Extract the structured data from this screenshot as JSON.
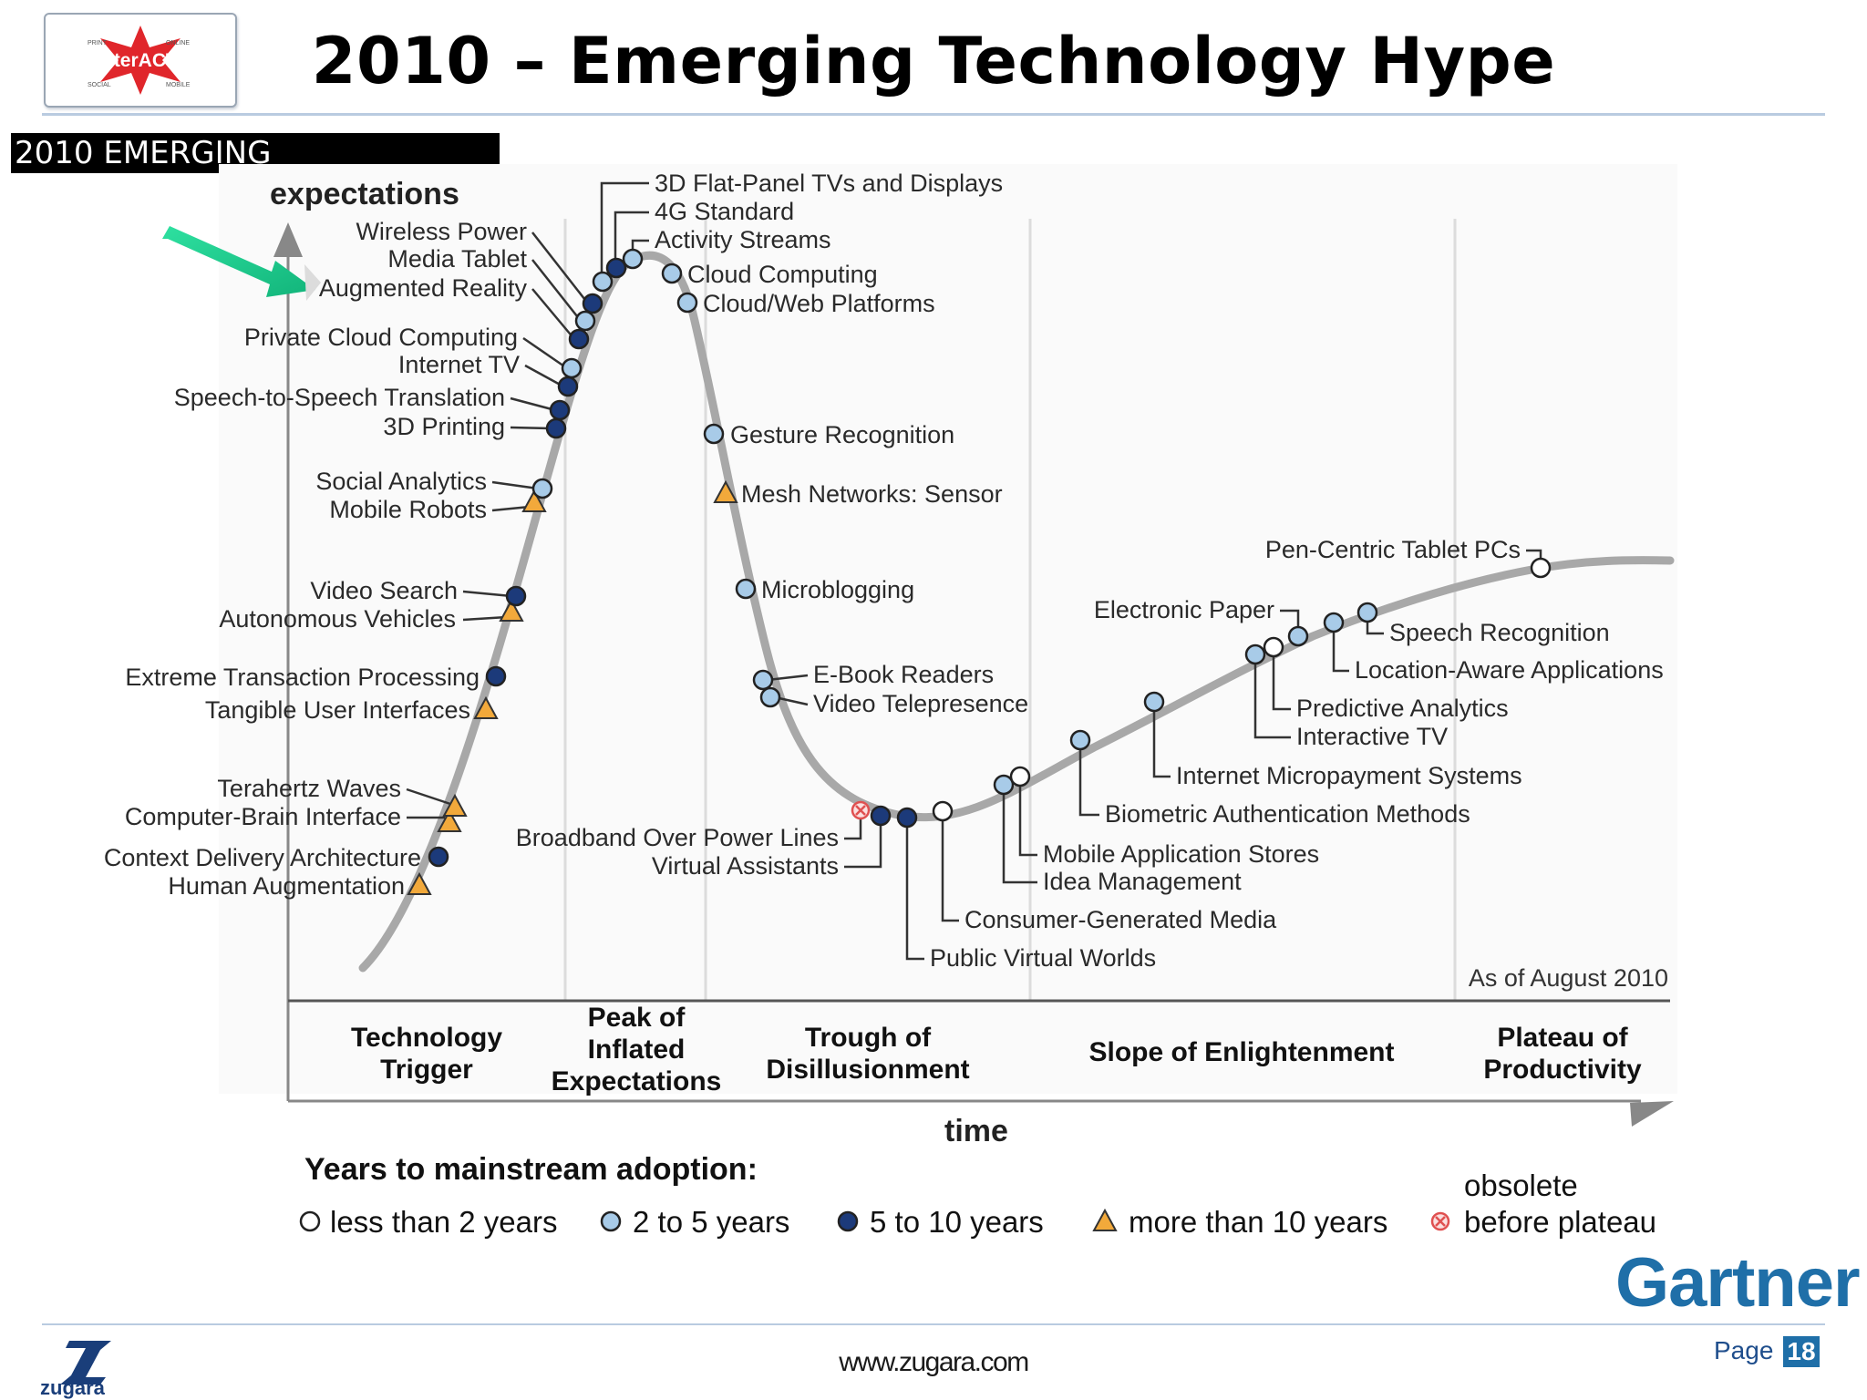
{
  "header": {
    "title": "2010 – Emerging Technology Hype",
    "logo": {
      "word": "InterACT!",
      "corner_labels": [
        "PRINT",
        "ONLINE",
        "SOCIAL",
        "MOBILE"
      ]
    }
  },
  "banner": {
    "text": "2010 EMERGING"
  },
  "diagram": {
    "y_axis_label": "expectations",
    "x_axis_label": "time",
    "as_of": "As of August 2010",
    "phases": [
      {
        "label_lines": [
          "Technology",
          "Trigger"
        ]
      },
      {
        "label_lines": [
          "Peak of",
          "Inflated",
          "Expectations"
        ]
      },
      {
        "label_lines": [
          "Trough of",
          "Disillusionment"
        ]
      },
      {
        "label_lines": [
          "Slope of Enlightenment"
        ]
      },
      {
        "label_lines": [
          "Plateau of",
          "Productivity"
        ]
      }
    ],
    "technologies": [
      {
        "name": "Human Augmentation",
        "adoption": "more than 10 years"
      },
      {
        "name": "Context Delivery Architecture",
        "adoption": "5 to 10 years"
      },
      {
        "name": "Computer-Brain Interface",
        "adoption": "more than 10 years"
      },
      {
        "name": "Terahertz Waves",
        "adoption": "more than 10 years"
      },
      {
        "name": "Tangible User Interfaces",
        "adoption": "more than 10 years"
      },
      {
        "name": "Extreme Transaction Processing",
        "adoption": "5 to 10 years"
      },
      {
        "name": "Autonomous Vehicles",
        "adoption": "more than 10 years"
      },
      {
        "name": "Video Search",
        "adoption": "5 to 10 years"
      },
      {
        "name": "Mobile Robots",
        "adoption": "more than 10 years"
      },
      {
        "name": "Social Analytics",
        "adoption": "2 to 5 years"
      },
      {
        "name": "3D Printing",
        "adoption": "5 to 10 years"
      },
      {
        "name": "Speech-to-Speech Translation",
        "adoption": "5 to 10 years"
      },
      {
        "name": "Internet TV",
        "adoption": "5 to 10 years"
      },
      {
        "name": "Private Cloud Computing",
        "adoption": "2 to 5 years"
      },
      {
        "name": "Augmented Reality",
        "adoption": "5 to 10 years"
      },
      {
        "name": "Media Tablet",
        "adoption": "2 to 5 years"
      },
      {
        "name": "Wireless Power",
        "adoption": "5 to 10 years"
      },
      {
        "name": "3D Flat-Panel TVs and Displays",
        "adoption": "2 to 5 years"
      },
      {
        "name": "4G Standard",
        "adoption": "5 to 10 years"
      },
      {
        "name": "Activity Streams",
        "adoption": "2 to 5 years"
      },
      {
        "name": "Cloud Computing",
        "adoption": "2 to 5 years"
      },
      {
        "name": "Cloud/Web Platforms",
        "adoption": "2 to 5 years"
      },
      {
        "name": "Gesture Recognition",
        "adoption": "2 to 5 years"
      },
      {
        "name": "Mesh Networks: Sensor",
        "adoption": "more than 10 years"
      },
      {
        "name": "Microblogging",
        "adoption": "2 to 5 years"
      },
      {
        "name": "E-Book Readers",
        "adoption": "2 to 5 years"
      },
      {
        "name": "Video Telepresence",
        "adoption": "2 to 5 years"
      },
      {
        "name": "Broadband Over Power Lines",
        "adoption": "obsolete before plateau"
      },
      {
        "name": "Virtual Assistants",
        "adoption": "5 to 10 years"
      },
      {
        "name": "Public Virtual Worlds",
        "adoption": "5 to 10 years"
      },
      {
        "name": "Consumer-Generated Media",
        "adoption": "less than 2 years"
      },
      {
        "name": "Idea Management",
        "adoption": "2 to 5 years"
      },
      {
        "name": "Mobile Application Stores",
        "adoption": "less than 2 years"
      },
      {
        "name": "Biometric Authentication Methods",
        "adoption": "2 to 5 years"
      },
      {
        "name": "Internet Micropayment Systems",
        "adoption": "2 to 5 years"
      },
      {
        "name": "Interactive TV",
        "adoption": "2 to 5 years"
      },
      {
        "name": "Predictive Analytics",
        "adoption": "less than 2 years"
      },
      {
        "name": "Electronic Paper",
        "adoption": "2 to 5 years"
      },
      {
        "name": "Location-Aware Applications",
        "adoption": "2 to 5 years"
      },
      {
        "name": "Speech Recognition",
        "adoption": "2 to 5 years"
      },
      {
        "name": "Pen-Centric Tablet PCs",
        "adoption": "less than 2 years"
      }
    ],
    "legend": {
      "title": "Years to mainstream adoption:",
      "items": [
        {
          "label": "less than 2 years",
          "marker": "open-circle"
        },
        {
          "label": "2 to 5 years",
          "marker": "light-blue-circle"
        },
        {
          "label": "5 to 10 years",
          "marker": "dark-blue-circle"
        },
        {
          "label": "more than 10 years",
          "marker": "orange-triangle"
        },
        {
          "label_lines": [
            "obsolete",
            "before plateau"
          ],
          "marker": "red-crossed-circle"
        }
      ]
    },
    "marker_colors": {
      "open": "#ffffff",
      "light_blue": "#a8cbe8",
      "dark_blue": "#1c3a7a",
      "orange": "#f2a93b",
      "obsolete": "#e05050"
    },
    "highlight_arrow": {
      "points_to": "Augmented Reality",
      "color": "#1fcf8f"
    }
  },
  "branding": {
    "gartner": "Gartner"
  },
  "footer": {
    "url": "www.zugara.com",
    "page_label": "Page",
    "page_number": "18",
    "brand": "zugara"
  }
}
